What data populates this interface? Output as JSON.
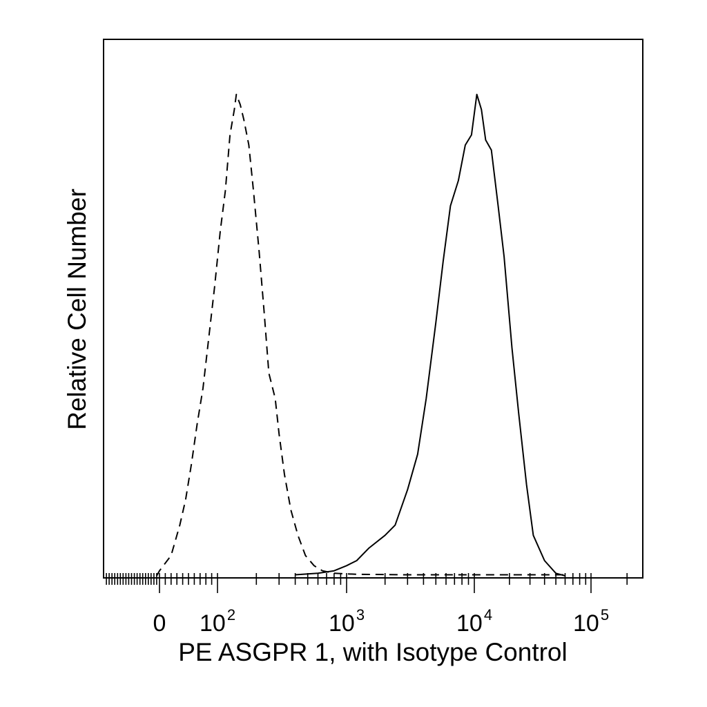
{
  "chart_data": {
    "type": "line",
    "title": "",
    "xlabel": "PE ASGPR 1, with Isotype Control",
    "ylabel": "Relative Cell Number",
    "x_scale": "biexponential",
    "xlim": [
      -200,
      250000
    ],
    "ylim": [
      0,
      1
    ],
    "grid": false,
    "legend": "none",
    "x_tick_labels": [
      {
        "value": 0,
        "base": "0",
        "exp": ""
      },
      {
        "value": 100,
        "base": "10",
        "exp": "2"
      },
      {
        "value": 1000,
        "base": "10",
        "exp": "3"
      },
      {
        "value": 10000,
        "base": "10",
        "exp": "4"
      },
      {
        "value": 100000,
        "base": "10",
        "exp": "5"
      }
    ],
    "series": [
      {
        "style": "dashed",
        "x": [
          -10,
          0,
          20,
          35,
          45,
          55,
          65,
          75,
          85,
          95,
          105,
          115,
          125,
          135,
          140,
          150,
          160,
          175,
          190,
          210,
          230,
          250,
          280,
          300,
          330,
          370,
          420,
          480,
          560,
          650,
          800,
          1200,
          3000,
          10000,
          60000
        ],
        "y": [
          0.0,
          0.01,
          0.04,
          0.1,
          0.15,
          0.22,
          0.3,
          0.37,
          0.47,
          0.57,
          0.68,
          0.76,
          0.87,
          0.92,
          0.95,
          0.93,
          0.9,
          0.85,
          0.76,
          0.64,
          0.52,
          0.4,
          0.35,
          0.28,
          0.2,
          0.13,
          0.08,
          0.04,
          0.02,
          0.01,
          0.005,
          0.003,
          0.002,
          0.002,
          0.002
        ]
      },
      {
        "style": "solid",
        "x": [
          400,
          600,
          800,
          1000,
          1200,
          1500,
          2000,
          2400,
          3000,
          3600,
          4200,
          5000,
          5700,
          6500,
          7500,
          8500,
          9500,
          10500,
          11500,
          12500,
          14000,
          16000,
          18000,
          21000,
          24000,
          28000,
          32000,
          40000,
          50000,
          60000
        ],
        "y": [
          0.002,
          0.005,
          0.01,
          0.02,
          0.03,
          0.055,
          0.08,
          0.1,
          0.17,
          0.24,
          0.35,
          0.5,
          0.62,
          0.73,
          0.78,
          0.85,
          0.87,
          0.95,
          0.92,
          0.86,
          0.84,
          0.73,
          0.63,
          0.45,
          0.32,
          0.18,
          0.08,
          0.03,
          0.005,
          0.0
        ]
      }
    ]
  }
}
